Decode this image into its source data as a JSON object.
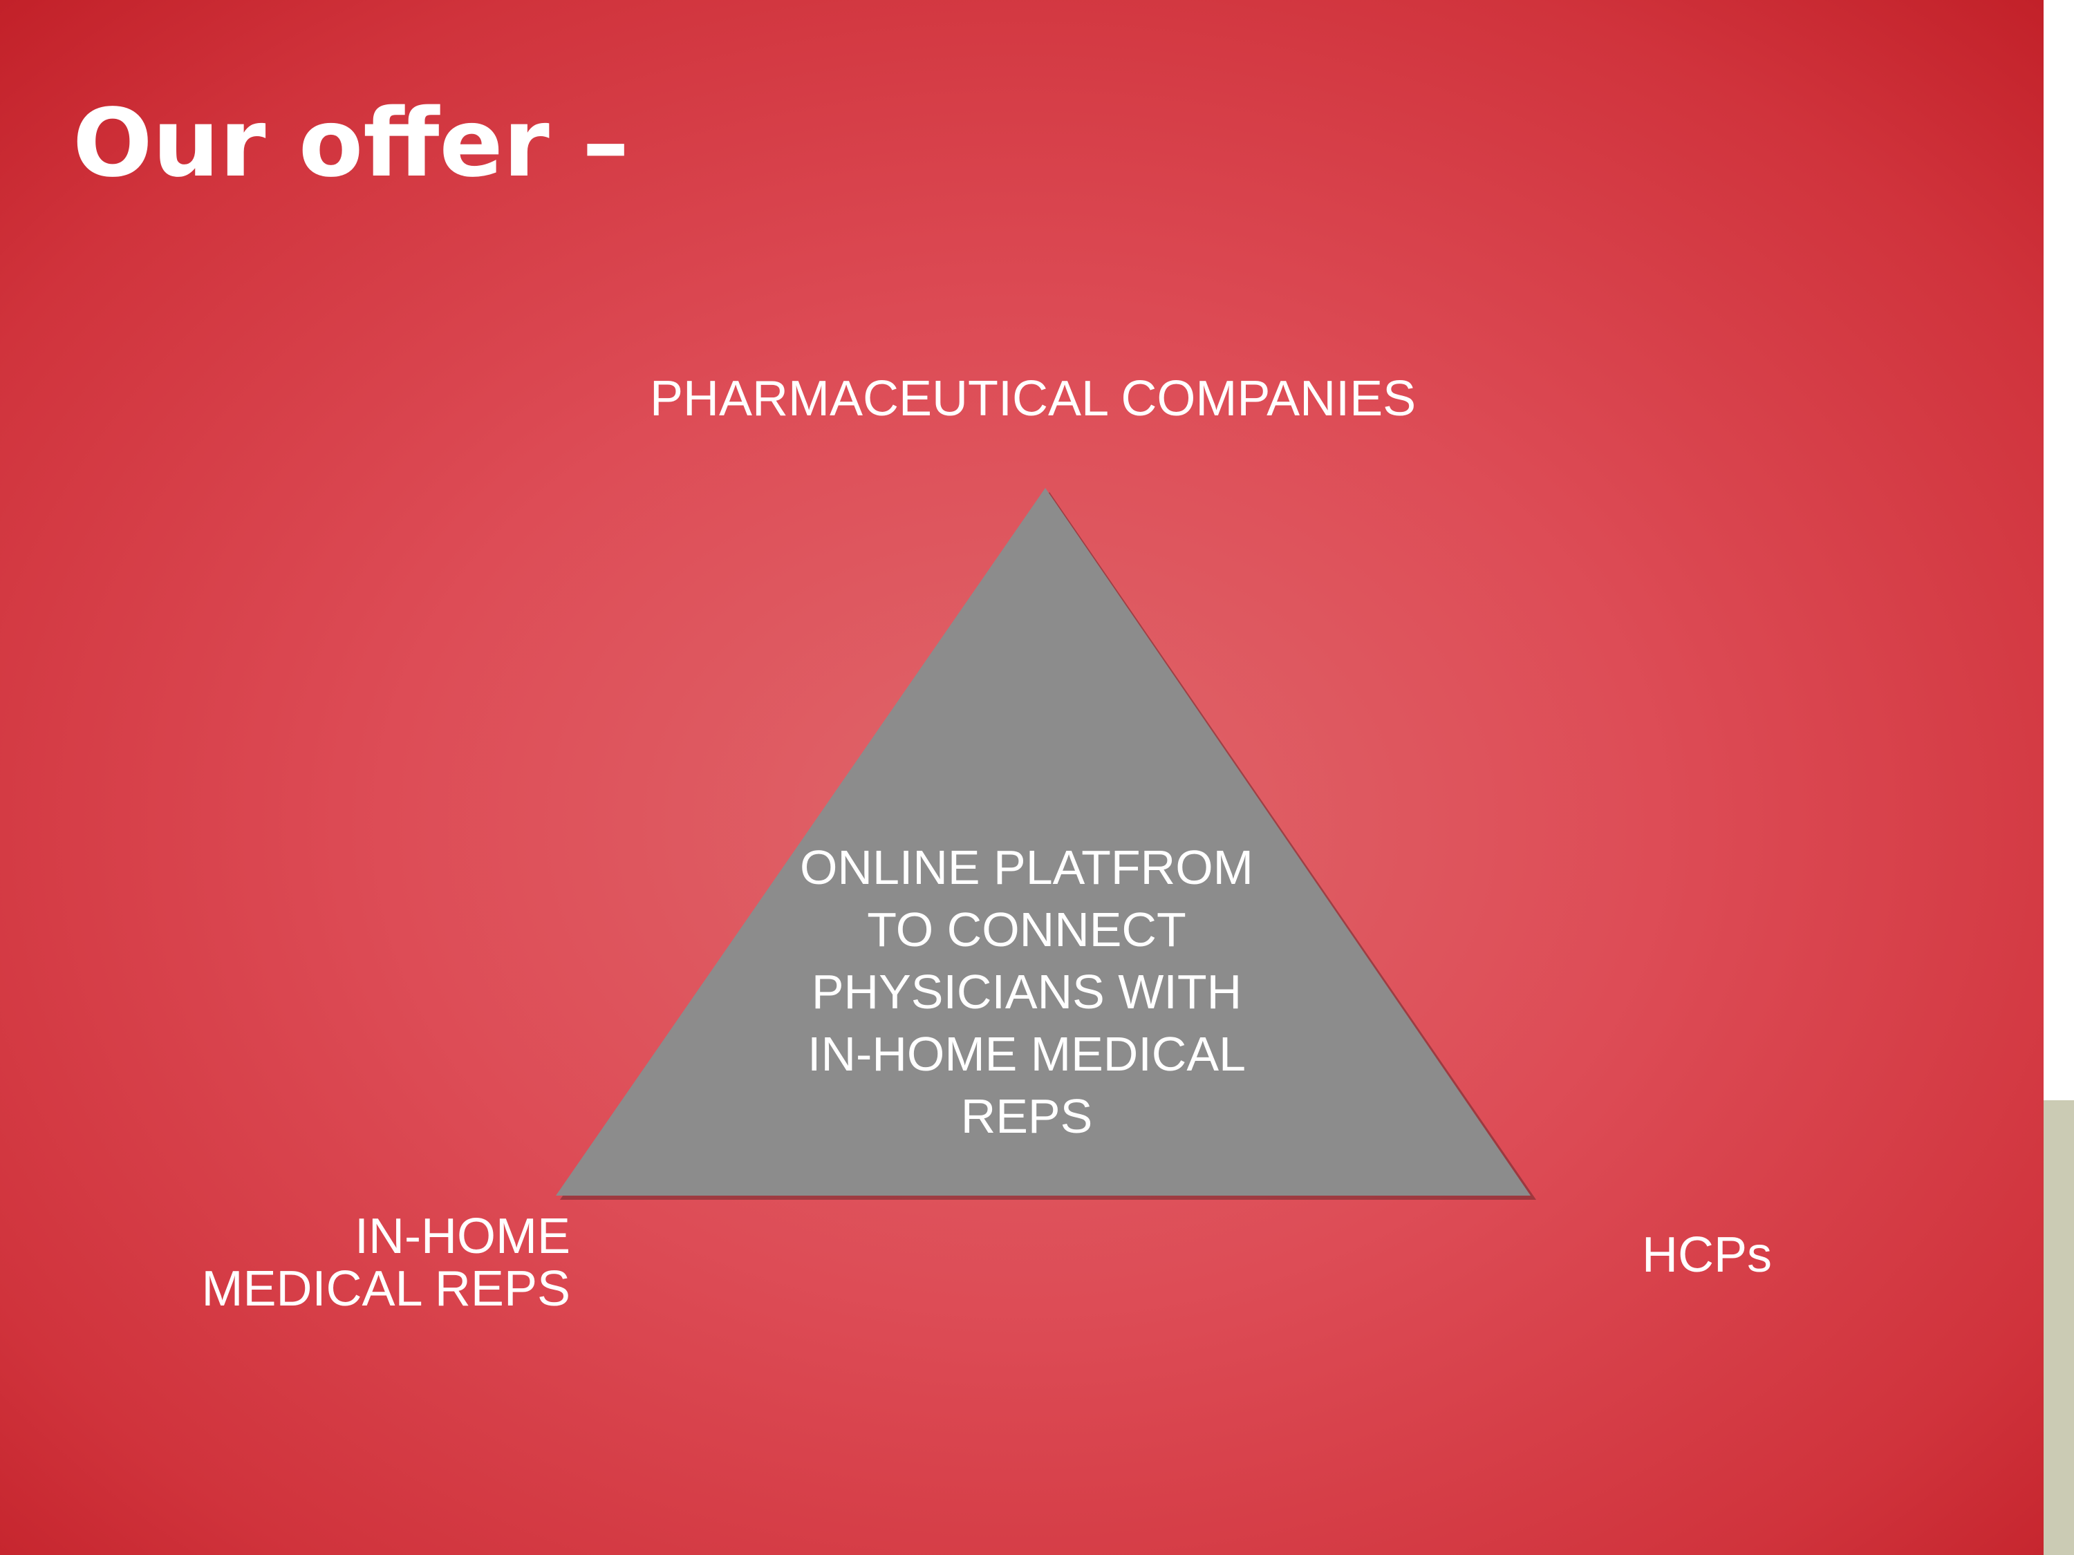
{
  "slide": {
    "title": "Our offer –"
  },
  "diagram": {
    "top_label": "PHARMACEUTICAL COMPANIES",
    "left_label_lines": [
      "IN-HOME",
      "MEDICAL REPS"
    ],
    "right_label": "HCPs",
    "center_lines": [
      "ONLINE PLATFROM",
      "TO CONNECT",
      "PHYSICIANS WITH",
      "IN-HOME MEDICAL",
      "REPS"
    ]
  },
  "colors": {
    "background": "#d93f49",
    "triangle": "#8c8c8c",
    "text": "#ffffff",
    "accent_strip": "#cbcbb4"
  }
}
